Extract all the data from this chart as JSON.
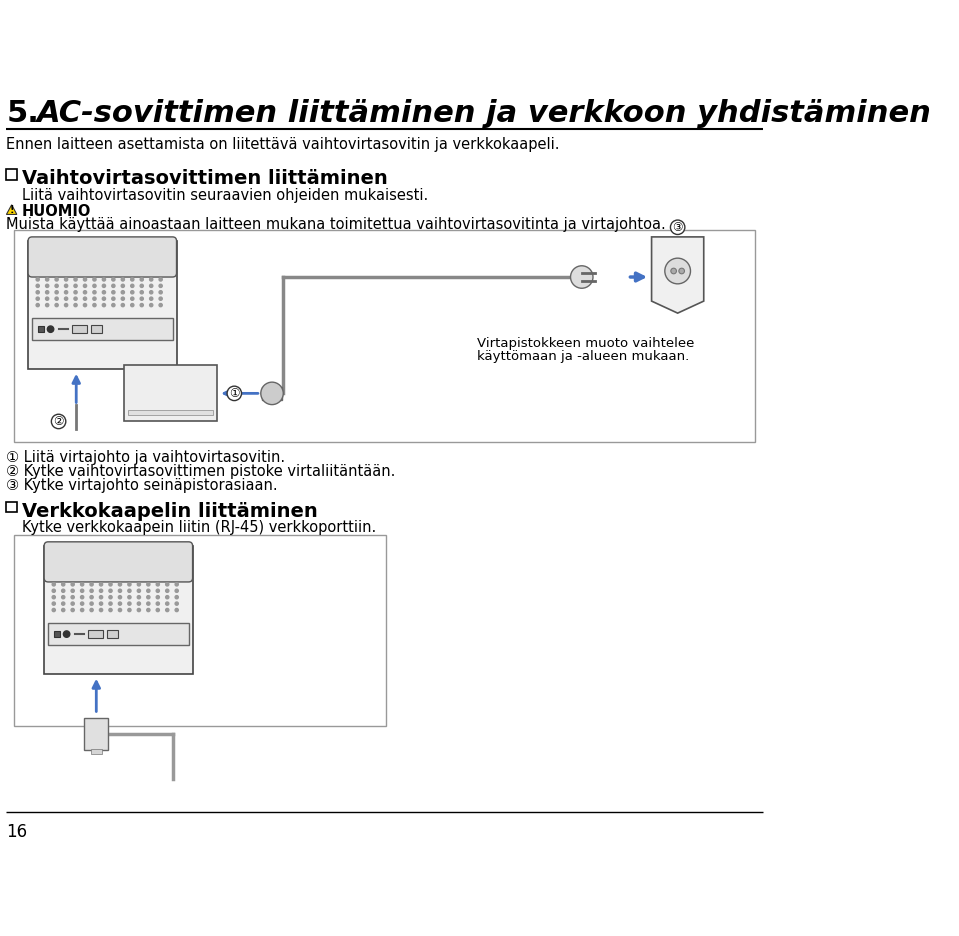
{
  "bg_color": "#ffffff",
  "title_number": "5.",
  "title_rest": "AC-sovittimen liittäminen ja verkkoon yhdistäminen",
  "subtitle": "Ennen laitteen asettamista on liitettävä vaihtovirtasovitin ja verkkokaapeli.",
  "section1_text": "Vaihtovirtasovittimen liittäminen",
  "section1_sub": "Liitä vaihtovirtasovitin seuraavien ohjeiden mukaisesti.",
  "warning_title": "HUOMIO",
  "warning_text": "Muista käyttää ainoastaan laitteen mukana toimitettua vaihtovirtasovitinta ja virtajohtoa.",
  "box1_note_line1": "Virtapistokkeen muoto vaihtelee",
  "box1_note_line2": "käyttömaan ja -alueen mukaan.",
  "step1": "① Liitä virtajohto ja vaihtovirtasovitin.",
  "step2": "② Kytke vaihtovirtasovittimen pistoke virtaliitäntään.",
  "step3": "③ Kytke virtajohto seinäpistorasiaan.",
  "section2_text": "Verkkokaapelin liittäminen",
  "section2_sub": "Kytke verkkokaapein liitin (RJ-45) verkkoporttiin.",
  "page_number": "16",
  "arrow_color": "#4472c4",
  "text_color": "#000000",
  "line_color": "#000000",
  "box_border_color": "#999999",
  "device_body_color": "#e8e8e8",
  "device_edge_color": "#555555"
}
